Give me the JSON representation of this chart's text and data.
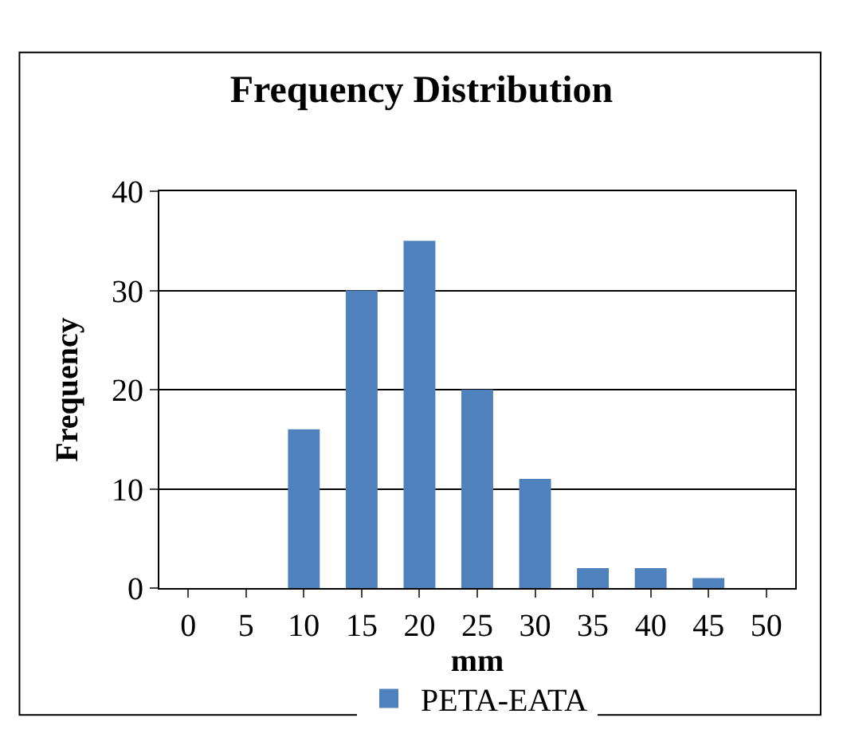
{
  "chart_data": {
    "type": "bar",
    "title": "Frequency Distribution",
    "xlabel": "mm",
    "ylabel": "Frequency",
    "categories": [
      "0",
      "5",
      "10",
      "15",
      "20",
      "25",
      "30",
      "35",
      "40",
      "45",
      "50"
    ],
    "series": [
      {
        "name": "PETA-EATA",
        "color": "#4f81bd",
        "values": [
          0,
          0,
          16,
          30,
          35,
          20,
          11,
          2,
          2,
          1,
          0
        ]
      }
    ],
    "ylim": [
      0,
      40
    ],
    "yticks": [
      0,
      10,
      20,
      30,
      40
    ],
    "grid": "y",
    "legend": "bottom"
  }
}
